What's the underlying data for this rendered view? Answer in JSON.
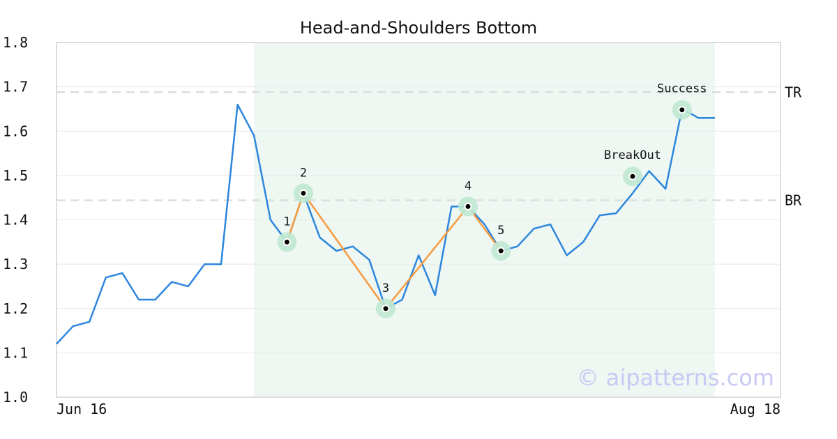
{
  "chart_data": {
    "type": "line",
    "title": "Head-and-Shoulders Bottom",
    "xlabel": "",
    "ylabel": "",
    "x_tick_labels": [
      "Jun 16",
      "Aug 18"
    ],
    "y_ticks": [
      "1.0",
      "1.1",
      "1.2",
      "1.3",
      "1.4",
      "1.5",
      "1.6",
      "1.7",
      "1.8"
    ],
    "ylim": [
      1.0,
      1.8
    ],
    "grid": true,
    "series": [
      {
        "color": "#2d86de",
        "values": [
          1.12,
          1.16,
          1.17,
          1.27,
          1.28,
          1.22,
          1.22,
          1.26,
          1.25,
          1.3,
          1.3,
          1.66,
          1.59,
          1.4,
          1.35,
          1.46,
          1.36,
          1.33,
          1.34,
          1.31,
          1.2,
          1.22,
          1.32,
          1.23,
          1.43,
          1.43,
          1.39,
          1.33,
          1.34,
          1.38,
          1.39,
          1.32,
          1.35,
          1.41,
          1.415,
          1.46,
          1.51,
          1.47,
          1.65,
          1.63,
          1.63
        ]
      }
    ],
    "pattern": {
      "color": "#f79a3e",
      "points": [
        {
          "index": 14,
          "value": 1.35,
          "label": "1"
        },
        {
          "index": 15,
          "value": 1.46,
          "label": "2"
        },
        {
          "index": 20,
          "value": 1.2,
          "label": "3"
        },
        {
          "index": 25,
          "value": 1.43,
          "label": "4"
        },
        {
          "index": 27,
          "value": 1.33,
          "label": "5"
        }
      ]
    },
    "events": [
      {
        "index": 35,
        "value": 1.498,
        "label": "BreakOut"
      },
      {
        "index": 38,
        "value": 1.648,
        "label": "Success"
      }
    ],
    "reference_lines": [
      {
        "value": 1.688,
        "label": "TR"
      },
      {
        "value": 1.444,
        "label": "BR"
      }
    ],
    "highlight_region": {
      "start_index": 12,
      "end_index": 40,
      "color": "#eef7f2"
    },
    "marker_halo_color": "#bfe8d3",
    "watermark": "© aipatterns.com"
  }
}
